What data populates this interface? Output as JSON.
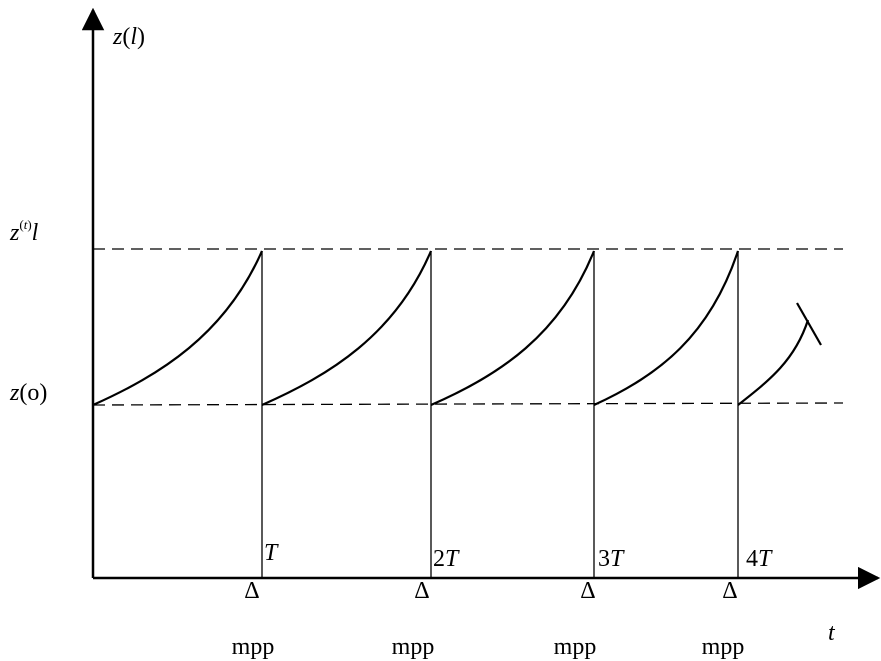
{
  "axes": {
    "y_label": "z(l)",
    "x_label": "t"
  },
  "levels": {
    "upper_label": "z(t)l",
    "lower_label": "z(o)"
  },
  "periods": [
    {
      "label": "T",
      "mark": "Δ",
      "note": "mpp"
    },
    {
      "label": "2T",
      "mark": "Δ",
      "note": "mpp"
    },
    {
      "label": "3T",
      "mark": "Δ",
      "note": "mpp"
    },
    {
      "label": "4T",
      "mark": "Δ",
      "note": "mpp"
    }
  ]
}
